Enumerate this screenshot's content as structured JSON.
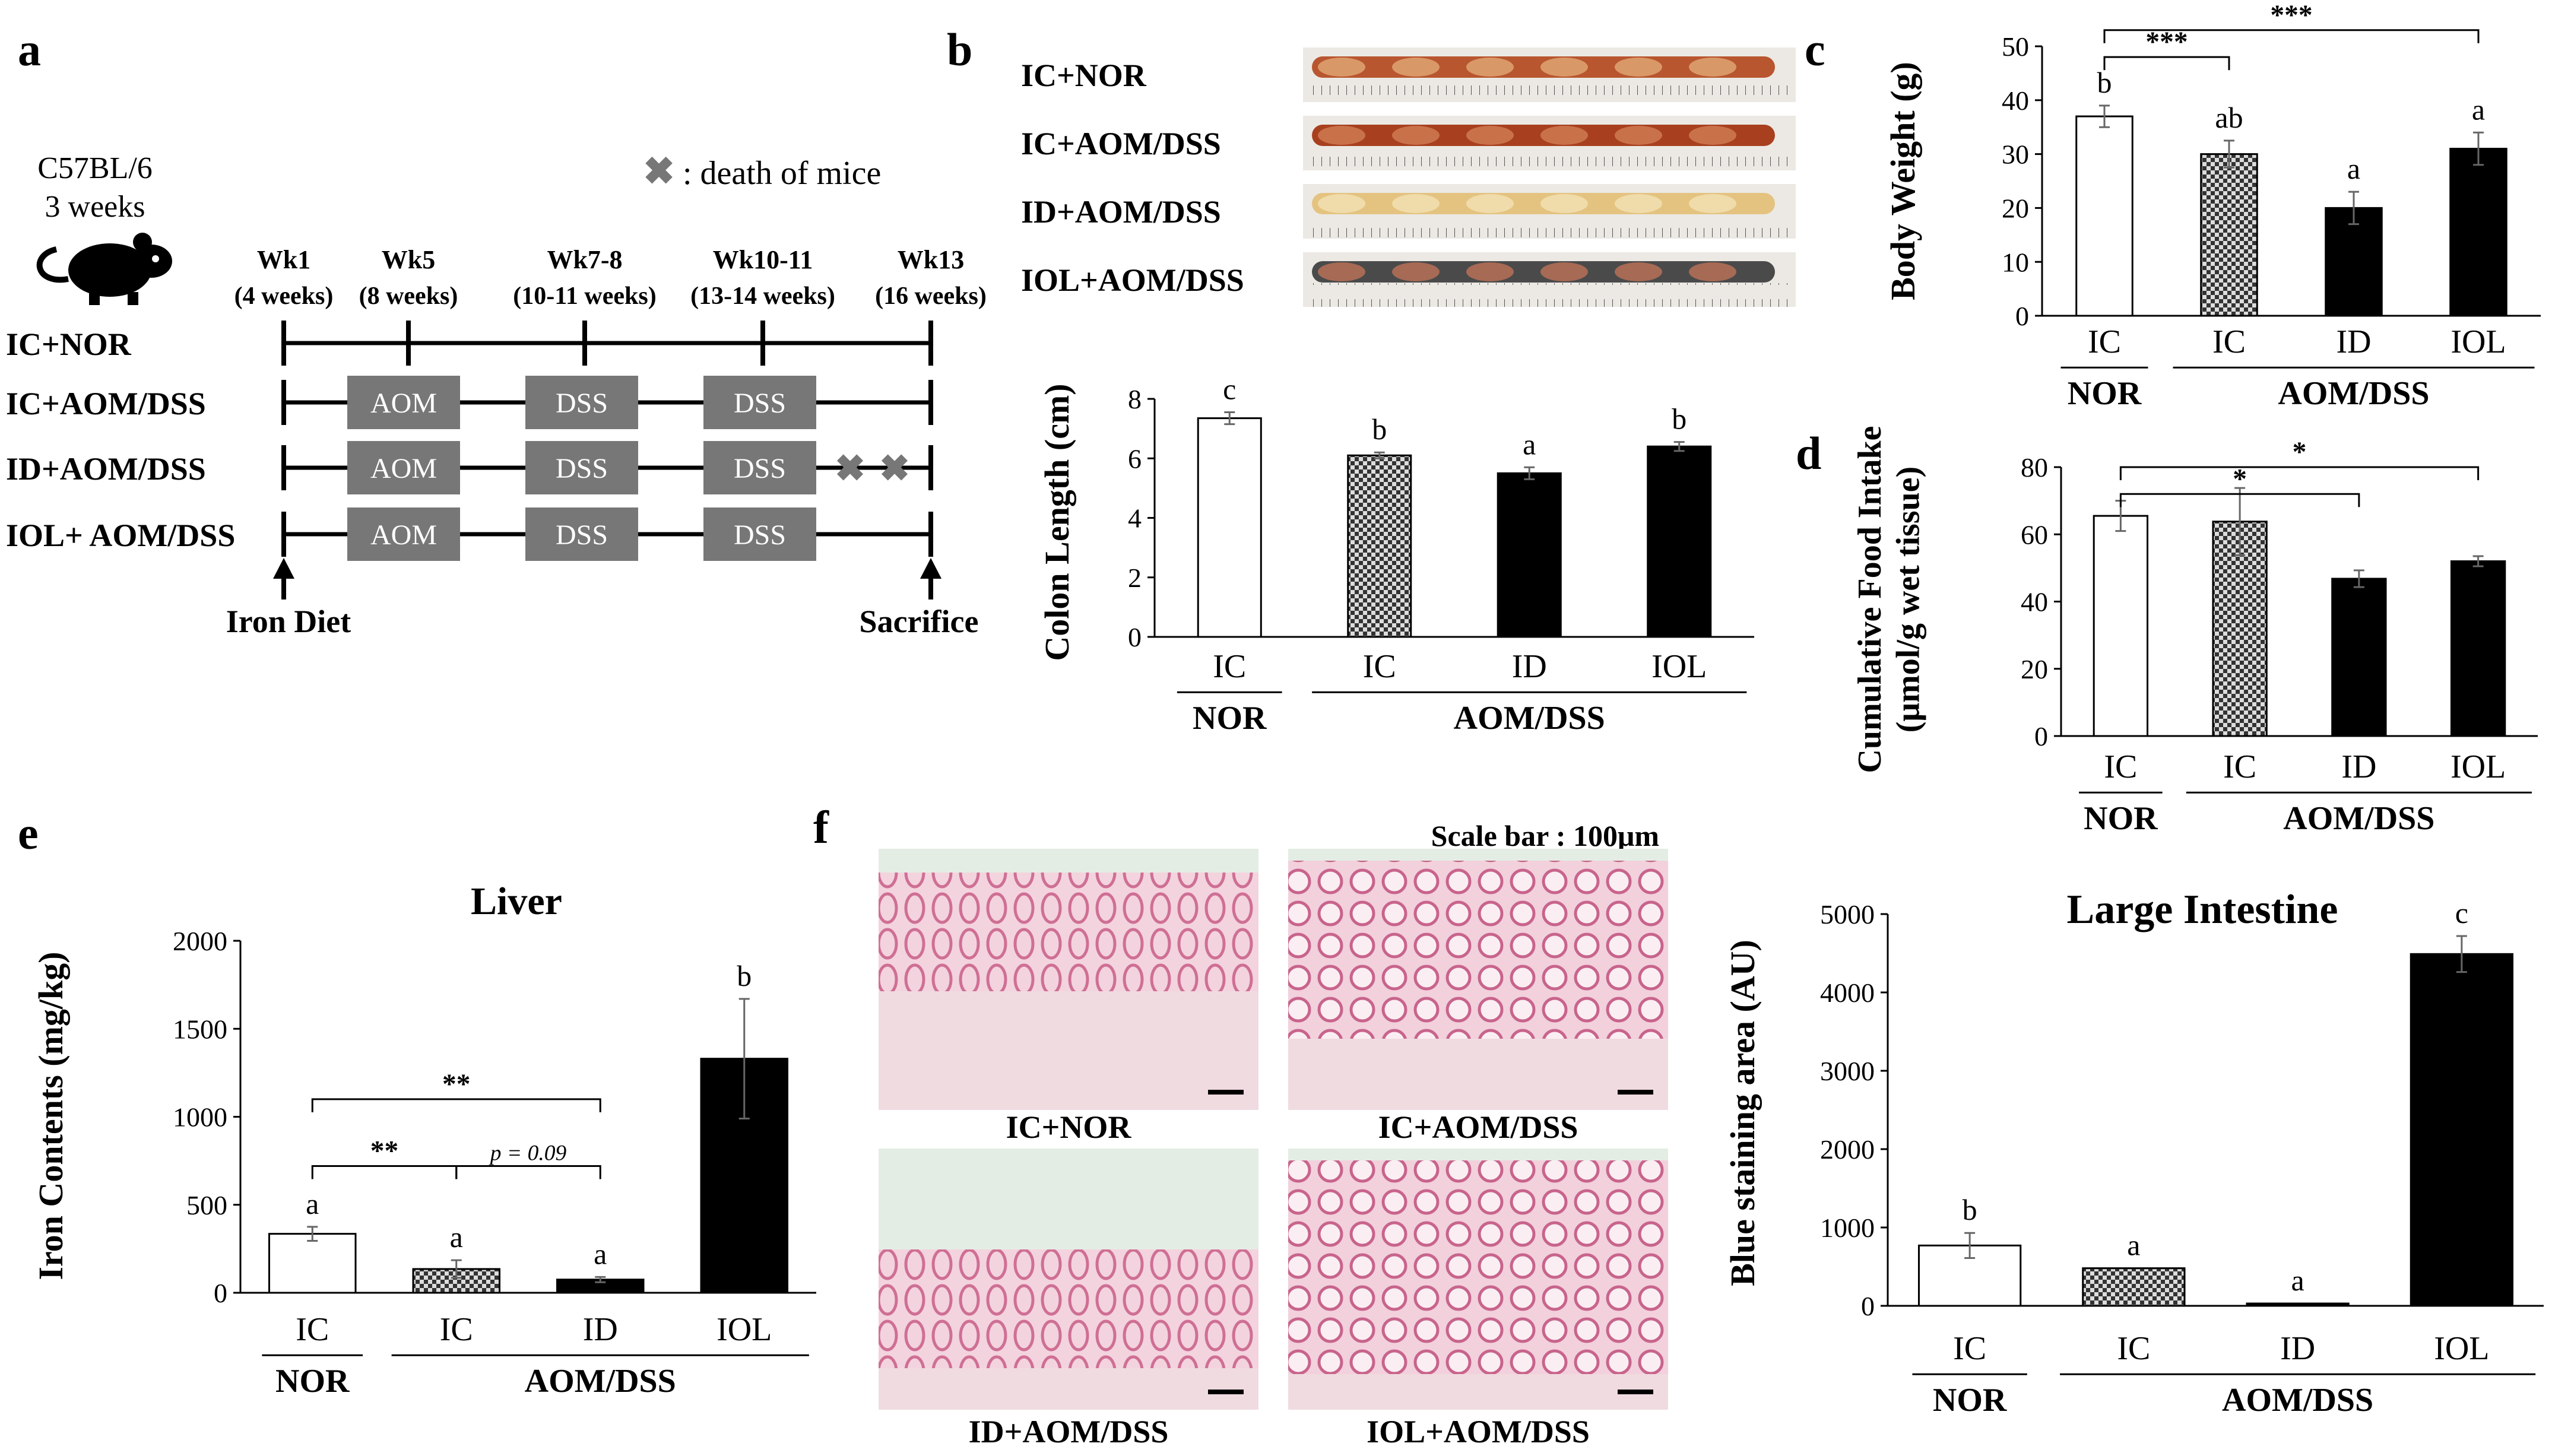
{
  "panel_letters": {
    "a": "a",
    "b": "b",
    "c": "c",
    "d": "d",
    "e": "e",
    "f": "f"
  },
  "colors": {
    "ink": "#000000",
    "track": "#777777",
    "white_bar": "#ffffff",
    "check_dark": "#3a3a3a",
    "check_light": "#d9d9d9",
    "tissue": "#f0c6d2",
    "tissue_dark": "#cf6f94",
    "bg_tissue": "#e6efe7"
  },
  "timeline": {
    "strain": "C57BL/6",
    "age": "3 weeks",
    "mouse_icon": "mouse-icon",
    "death_legend": ": death of mice",
    "weeks": [
      {
        "wk": "Wk1",
        "age": "(4 weeks)"
      },
      {
        "wk": "Wk5",
        "age": "(8 weeks)"
      },
      {
        "wk": "Wk7-8",
        "age": "(10-11 weeks)"
      },
      {
        "wk": "Wk10-11",
        "age": "(13-14 weeks)"
      },
      {
        "wk": "Wk13",
        "age": "(16 weeks)"
      }
    ],
    "groups": [
      {
        "label": "IC+NOR",
        "boxes": []
      },
      {
        "label": "IC+AOM/DSS",
        "boxes": [
          "AOM",
          "DSS",
          "DSS"
        ]
      },
      {
        "label": "ID+AOM/DSS",
        "boxes": [
          "AOM",
          "DSS",
          "DSS"
        ],
        "deaths": 2
      },
      {
        "label": "IOL+ AOM/DSS",
        "boxes": [
          "AOM",
          "DSS",
          "DSS"
        ]
      }
    ],
    "start_label": "Iron Diet",
    "end_label": "Sacrifice"
  },
  "colon_photos": {
    "labels": [
      "IC+NOR",
      "IC+AOM/DSS",
      "ID+AOM/DSS",
      "IOL+AOM/DSS"
    ]
  },
  "histology": {
    "scale_label": "Scale bar : 100μm",
    "labels": [
      "IC+NOR",
      "IC+AOM/DSS",
      "ID+AOM/DSS",
      "IOL+AOM/DSS"
    ]
  },
  "group_axis": {
    "categories": [
      "IC",
      "IC",
      "ID",
      "IOL"
    ],
    "nor": "NOR",
    "aom": "AOM/DSS"
  },
  "chart_data": [
    {
      "id": "colon",
      "type": "bar",
      "title": "",
      "ylabel": "Colon Length (cm)",
      "ylim": [
        0,
        8
      ],
      "yticks": [
        0,
        2,
        4,
        6,
        8
      ],
      "categories": [
        "IC",
        "IC",
        "ID",
        "IOL"
      ],
      "values": [
        7.35,
        6.1,
        5.5,
        6.4
      ],
      "errors": [
        0.2,
        0.1,
        0.2,
        0.15
      ],
      "letters": [
        "c",
        "b",
        "a",
        "b"
      ],
      "fills": [
        "white",
        "check",
        "black",
        "black"
      ],
      "brackets": []
    },
    {
      "id": "bodyweight",
      "type": "bar",
      "title": "",
      "ylabel": "Body Weight (g)",
      "ylim": [
        0,
        50
      ],
      "yticks": [
        0,
        10,
        20,
        30,
        40,
        50
      ],
      "categories": [
        "IC",
        "IC",
        "ID",
        "IOL"
      ],
      "values": [
        37,
        30,
        20,
        31
      ],
      "errors": [
        2,
        2.5,
        3,
        3
      ],
      "letters": [
        "b",
        "ab",
        "a",
        "a"
      ],
      "fills": [
        "white",
        "check",
        "black",
        "black"
      ],
      "brackets": [
        {
          "from": 0,
          "to": 1,
          "label": "***",
          "y": 48
        },
        {
          "from": 0,
          "to": 3,
          "label": "***",
          "y": 53
        }
      ]
    },
    {
      "id": "food",
      "type": "bar",
      "title": "",
      "ylabel": "Cumulative Food Intake",
      "ylabel2": "(μmol/g wet tissue)",
      "ylim": [
        0,
        80
      ],
      "yticks": [
        0,
        20,
        40,
        60,
        80
      ],
      "categories": [
        "IC",
        "IC",
        "ID",
        "IOL"
      ],
      "values": [
        65.5,
        63.8,
        46.8,
        52
      ],
      "errors": [
        4.5,
        10,
        2.5,
        1.5
      ],
      "letters": [
        "",
        "",
        "",
        ""
      ],
      "fills": [
        "white",
        "check",
        "black",
        "black"
      ],
      "brackets": [
        {
          "from": 0,
          "to": 2,
          "label": "*",
          "y": 72
        },
        {
          "from": 0,
          "to": 3,
          "label": "*",
          "y": 80
        }
      ]
    },
    {
      "id": "liver",
      "type": "bar",
      "title": "Liver",
      "ylabel": "Iron Contents (mg/kg)",
      "ylim": [
        0,
        2000
      ],
      "yticks": [
        0,
        500,
        1000,
        1500,
        2000
      ],
      "categories": [
        "IC",
        "IC",
        "ID",
        "IOL"
      ],
      "values": [
        335,
        135,
        75,
        1330
      ],
      "errors": [
        40,
        50,
        15,
        340
      ],
      "letters": [
        "a",
        "a",
        "a",
        "b"
      ],
      "fills": [
        "white",
        "check",
        "black",
        "black"
      ],
      "brackets": [
        {
          "from": 0,
          "to": 1,
          "label": "**",
          "y": 720
        },
        {
          "from": 1,
          "to": 2,
          "label": "p = 0.09",
          "y": 720
        },
        {
          "from": 0,
          "to": 2,
          "label": "**",
          "y": 1100
        }
      ]
    },
    {
      "id": "intestine",
      "type": "bar",
      "title": "Large Intestine",
      "ylabel": "Blue staining area (AU)",
      "ylim": [
        0,
        5000
      ],
      "yticks": [
        0,
        1000,
        2000,
        3000,
        4000,
        5000
      ],
      "categories": [
        "IC",
        "IC",
        "ID",
        "IOL"
      ],
      "values": [
        770,
        480,
        30,
        4490
      ],
      "errors": [
        160,
        0,
        0,
        230
      ],
      "letters": [
        "b",
        "a",
        "a",
        "c"
      ],
      "fills": [
        "white",
        "check",
        "black",
        "black"
      ],
      "brackets": []
    }
  ]
}
